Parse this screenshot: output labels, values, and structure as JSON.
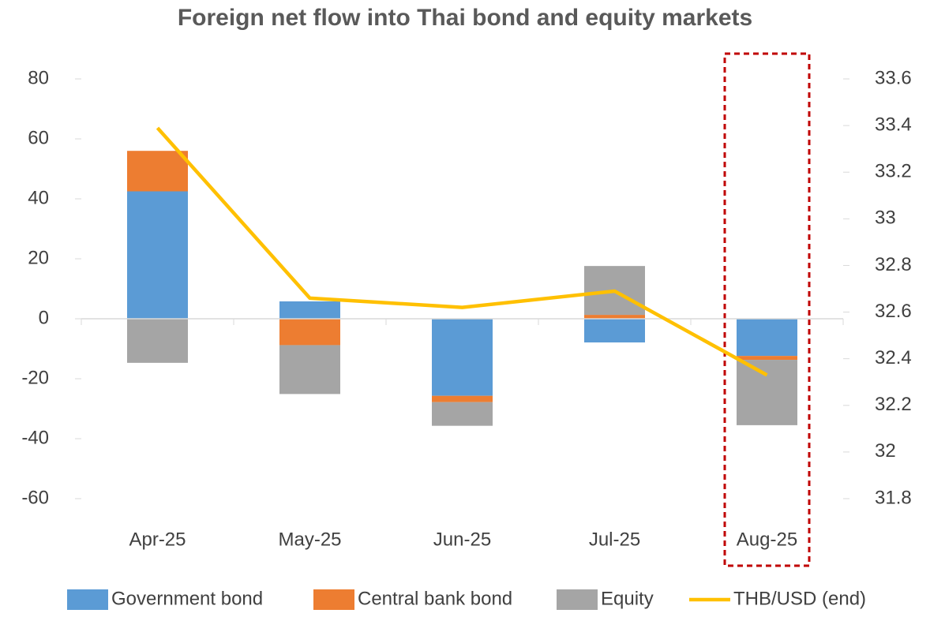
{
  "chart_data": {
    "type": "bar",
    "title": "Foreign net flow into Thai bond and equity markets",
    "categories": [
      "Apr-25",
      "May-25",
      "Jun-25",
      "Jul-25",
      "Aug-25"
    ],
    "series": [
      {
        "name": "Government bond",
        "color": "#5b9bd5",
        "values": [
          42.5,
          5.8,
          -25.7,
          -7.9,
          -12.4
        ]
      },
      {
        "name": "Central bank bond",
        "color": "#ed7d31",
        "values": [
          13.5,
          -8.8,
          -2.1,
          1.3,
          -1.3
        ]
      },
      {
        "name": "Equity",
        "color": "#a5a5a5",
        "values": [
          -14.7,
          -16.3,
          -7.9,
          16.3,
          -21.8
        ]
      },
      {
        "name": "THB/USD (end)",
        "color": "#ffc000",
        "type": "line",
        "axis": "y2",
        "values": [
          33.39,
          32.66,
          32.62,
          32.69,
          32.33
        ]
      }
    ],
    "ylim": [
      -60,
      80
    ],
    "yticks": [
      -60,
      -40,
      -20,
      0,
      20,
      40,
      60,
      80
    ],
    "y2lim": [
      31.8,
      33.6
    ],
    "y2ticks": [
      31.8,
      32,
      32.2,
      32.4,
      32.6,
      32.8,
      33,
      33.2,
      33.4,
      33.6
    ],
    "grid": false,
    "legend": "bottom"
  }
}
